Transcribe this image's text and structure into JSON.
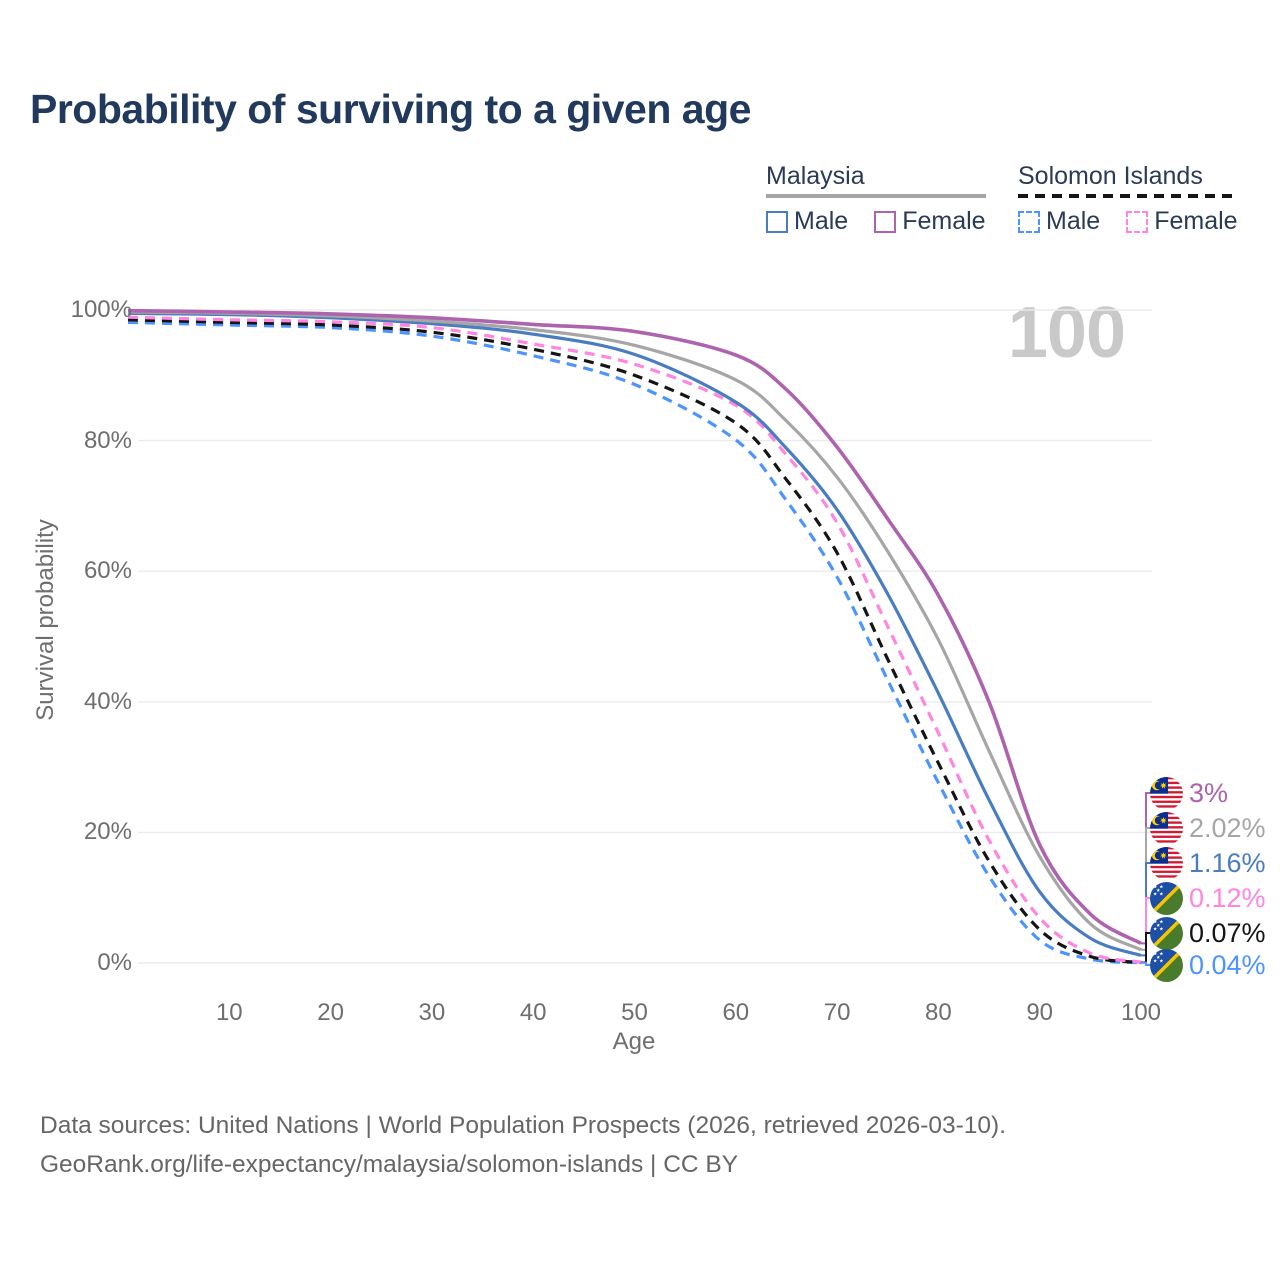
{
  "header": {
    "title": "Probability of surviving to a given age"
  },
  "legend": {
    "groups": [
      {
        "label": "Malaysia",
        "underline_style": "solid",
        "underline_color": "#a6a6a6",
        "items": [
          {
            "label": "Male",
            "color": "#4a7cc0",
            "style": "solid"
          },
          {
            "label": "Female",
            "color": "#ad63ad",
            "style": "solid"
          }
        ]
      },
      {
        "label": "Solomon Islands",
        "underline_style": "dashed",
        "underline_color": "#151515",
        "items": [
          {
            "label": "Male",
            "color": "#4d94ff",
            "style": "dashed"
          },
          {
            "label": "Female",
            "color": "#ff85e0",
            "style": "dashed"
          }
        ]
      }
    ]
  },
  "chart_data": {
    "type": "line",
    "title": "Probability of surviving to a given age",
    "xlabel": "Age",
    "ylabel": "Survival probability",
    "xlim": [
      0,
      100
    ],
    "ylim": [
      0,
      100
    ],
    "xticks": [
      10,
      20,
      30,
      40,
      50,
      60,
      70,
      80,
      90,
      100
    ],
    "yticks": [
      0,
      20,
      40,
      60,
      80,
      100
    ],
    "ytick_suffix": "%",
    "grid": "horizontal",
    "legend_position": "top-right",
    "watermark": "100",
    "x": [
      0,
      10,
      20,
      30,
      40,
      50,
      60,
      65,
      70,
      75,
      80,
      85,
      90,
      95,
      100
    ],
    "series": [
      {
        "name": "Malaysia Female",
        "country": "Malaysia",
        "sex": "Female",
        "style": "solid",
        "color": "#ad63ad",
        "end_label": "3%",
        "flag": "malaysia-flag-icon",
        "values": [
          99.9,
          99.7,
          99.4,
          98.8,
          97.8,
          96.7,
          93.1,
          87.8,
          79.0,
          68.0,
          56.3,
          40.0,
          18.1,
          7.5,
          3.0
        ]
      },
      {
        "name": "Malaysia Both sexes",
        "country": "Malaysia",
        "sex": "Both",
        "style": "solid",
        "color": "#a6a6a6",
        "end_label": "2.02%",
        "flag": "malaysia-flag-icon",
        "values": [
          99.7,
          99.5,
          99.1,
          98.3,
          97.0,
          94.6,
          89.3,
          83.0,
          74.4,
          63.0,
          49.5,
          32.5,
          16.3,
          6.0,
          2.02
        ]
      },
      {
        "name": "Malaysia Male",
        "country": "Malaysia",
        "sex": "Male",
        "style": "solid",
        "color": "#4a7cc0",
        "end_label": "1.16%",
        "flag": "malaysia-flag-icon",
        "values": [
          99.5,
          99.3,
          98.8,
          97.9,
          96.3,
          93.2,
          85.9,
          78.8,
          69.4,
          56.5,
          41.3,
          25.0,
          10.9,
          3.8,
          1.16
        ]
      },
      {
        "name": "Solomon Islands Female",
        "country": "Solomon Islands",
        "sex": "Female",
        "style": "dashed",
        "color": "#ff85e0",
        "end_label": "0.12%",
        "flag": "solomon-islands-flag-icon",
        "values": [
          98.9,
          98.5,
          98.2,
          97.3,
          94.8,
          91.7,
          85.4,
          77.8,
          67.4,
          51.5,
          35.2,
          18.8,
          6.9,
          1.5,
          0.12
        ]
      },
      {
        "name": "Solomon Islands Both sexes",
        "country": "Solomon Islands",
        "sex": "Both",
        "style": "dashed",
        "color": "#151515",
        "end_label": "0.07%",
        "flag": "solomon-islands-flag-icon",
        "values": [
          98.5,
          98.1,
          97.7,
          96.6,
          94.0,
          90.0,
          82.7,
          74.0,
          62.8,
          46.5,
          30.6,
          15.6,
          5.1,
          1.0,
          0.07
        ]
      },
      {
        "name": "Solomon Islands Male",
        "country": "Solomon Islands",
        "sex": "Male",
        "style": "dashed",
        "color": "#4d94ff",
        "end_label": "0.04%",
        "flag": "solomon-islands-flag-icon",
        "values": [
          98.1,
          97.7,
          97.3,
          96.0,
          93.0,
          88.6,
          80.1,
          70.8,
          59.1,
          43.3,
          27.6,
          13.3,
          3.5,
          0.6,
          0.04
        ]
      }
    ],
    "end_label_order": [
      "Malaysia Female",
      "Malaysia Both sexes",
      "Malaysia Male",
      "Solomon Islands Female",
      "Solomon Islands Both sexes",
      "Solomon Islands Male"
    ],
    "draw_order": [
      "Solomon Islands Male",
      "Solomon Islands Both sexes",
      "Solomon Islands Female",
      "Malaysia Male",
      "Malaysia Both sexes",
      "Malaysia Female"
    ]
  },
  "footer": {
    "line1": "Data sources: United Nations | World Population Prospects (2026, retrieved 2026-03-10).",
    "line2": "GeoRank.org/life-expectancy/malaysia/solomon-islands | CC BY"
  }
}
